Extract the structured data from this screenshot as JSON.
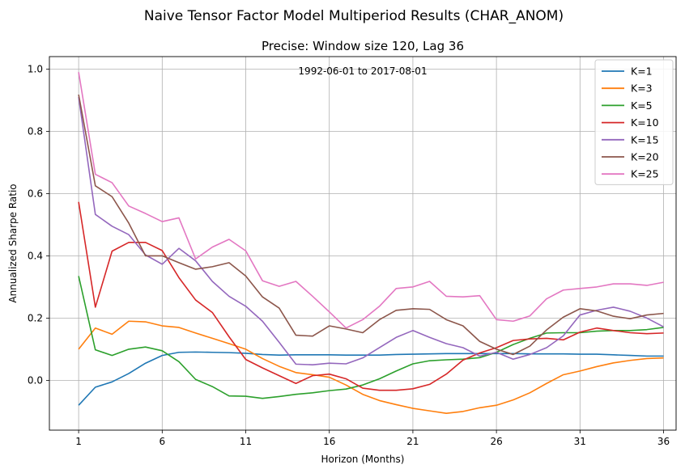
{
  "chart_data": {
    "type": "line",
    "suptitle": "Naive Tensor Factor Model Multiperiod Results (CHAR_ANOM)",
    "title": "Precise: Window size 120, Lag 36",
    "annotation": "1992-06-01 to 2017-08-01",
    "xlabel": "Horizon (Months)",
    "ylabel": "Annualized Sharpe Ratio",
    "xlim": [
      -0.75,
      36.75
    ],
    "ylim": [
      -0.16,
      1.04
    ],
    "xticks": [
      1,
      6,
      11,
      16,
      21,
      26,
      31,
      36
    ],
    "yticks": [
      0.0,
      0.2,
      0.4,
      0.6,
      0.8,
      1.0
    ],
    "ytick_labels": [
      "0.0",
      "0.2",
      "0.4",
      "0.6",
      "0.8",
      "1.0"
    ],
    "grid": true,
    "legend_position": "upper right",
    "x": [
      1,
      2,
      3,
      4,
      5,
      6,
      7,
      8,
      9,
      10,
      11,
      12,
      13,
      14,
      15,
      16,
      17,
      18,
      19,
      20,
      21,
      22,
      23,
      24,
      25,
      26,
      27,
      28,
      29,
      30,
      31,
      32,
      33,
      34,
      35,
      36
    ],
    "series": [
      {
        "name": "K=1",
        "color": "#1f77b4",
        "values": [
          -0.08,
          -0.022,
          -0.005,
          0.022,
          0.055,
          0.08,
          0.09,
          0.091,
          0.09,
          0.089,
          0.087,
          0.083,
          0.081,
          0.082,
          0.082,
          0.082,
          0.081,
          0.081,
          0.081,
          0.083,
          0.084,
          0.085,
          0.086,
          0.086,
          0.086,
          0.086,
          0.086,
          0.085,
          0.085,
          0.085,
          0.084,
          0.084,
          0.082,
          0.08,
          0.078,
          0.078
        ]
      },
      {
        "name": "K=3",
        "color": "#ff7f0e",
        "values": [
          0.1,
          0.168,
          0.148,
          0.19,
          0.188,
          0.175,
          0.17,
          0.152,
          0.135,
          0.118,
          0.1,
          0.07,
          0.045,
          0.025,
          0.018,
          0.01,
          -0.015,
          -0.045,
          -0.065,
          -0.078,
          -0.09,
          -0.098,
          -0.106,
          -0.1,
          -0.088,
          -0.08,
          -0.063,
          -0.04,
          -0.01,
          0.018,
          0.03,
          0.044,
          0.056,
          0.064,
          0.07,
          0.072
        ]
      },
      {
        "name": "K=5",
        "color": "#2ca02c",
        "values": [
          0.335,
          0.098,
          0.08,
          0.1,
          0.107,
          0.095,
          0.06,
          0.003,
          -0.02,
          -0.05,
          -0.051,
          -0.058,
          -0.052,
          -0.045,
          -0.04,
          -0.033,
          -0.028,
          -0.015,
          0.005,
          0.03,
          0.053,
          0.063,
          0.066,
          0.068,
          0.073,
          0.09,
          0.115,
          0.135,
          0.152,
          0.153,
          0.153,
          0.158,
          0.16,
          0.16,
          0.163,
          0.17
        ]
      },
      {
        "name": "K=10",
        "color": "#d62728",
        "values": [
          0.573,
          0.235,
          0.415,
          0.443,
          0.443,
          0.417,
          0.33,
          0.258,
          0.218,
          0.14,
          0.067,
          0.04,
          0.015,
          -0.01,
          0.015,
          0.02,
          0.005,
          -0.025,
          -0.032,
          -0.032,
          -0.027,
          -0.013,
          0.02,
          0.065,
          0.088,
          0.105,
          0.128,
          0.133,
          0.135,
          0.13,
          0.155,
          0.168,
          0.16,
          0.153,
          0.15,
          0.152
        ]
      },
      {
        "name": "K=15",
        "color": "#9467bd",
        "values": [
          0.91,
          0.533,
          0.495,
          0.468,
          0.403,
          0.373,
          0.424,
          0.384,
          0.318,
          0.27,
          0.238,
          0.19,
          0.122,
          0.052,
          0.05,
          0.055,
          0.053,
          0.072,
          0.105,
          0.138,
          0.16,
          0.138,
          0.118,
          0.105,
          0.078,
          0.09,
          0.068,
          0.083,
          0.105,
          0.143,
          0.21,
          0.225,
          0.235,
          0.222,
          0.2,
          0.172
        ]
      },
      {
        "name": "K=20",
        "color": "#8c564b",
        "values": [
          0.918,
          0.625,
          0.59,
          0.505,
          0.4,
          0.4,
          0.378,
          0.357,
          0.365,
          0.378,
          0.335,
          0.268,
          0.232,
          0.145,
          0.142,
          0.175,
          0.165,
          0.153,
          0.195,
          0.225,
          0.23,
          0.228,
          0.195,
          0.175,
          0.125,
          0.1,
          0.083,
          0.11,
          0.162,
          0.203,
          0.23,
          0.223,
          0.206,
          0.198,
          0.21,
          0.215
        ]
      },
      {
        "name": "K=25",
        "color": "#e377c2",
        "values": [
          0.99,
          0.662,
          0.635,
          0.56,
          0.536,
          0.51,
          0.522,
          0.39,
          0.428,
          0.453,
          0.416,
          0.32,
          0.302,
          0.318,
          0.27,
          0.22,
          0.168,
          0.195,
          0.238,
          0.295,
          0.3,
          0.318,
          0.27,
          0.268,
          0.272,
          0.195,
          0.19,
          0.207,
          0.262,
          0.29,
          0.295,
          0.3,
          0.31,
          0.31,
          0.305,
          0.315
        ]
      }
    ]
  }
}
